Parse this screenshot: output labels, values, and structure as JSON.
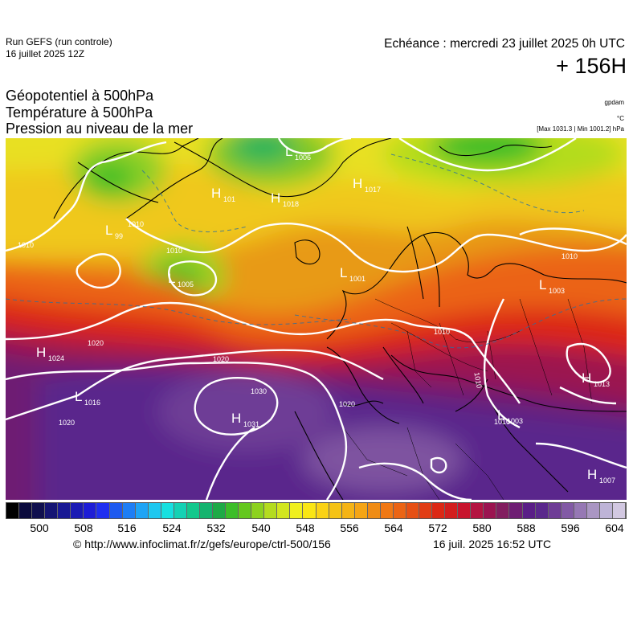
{
  "header": {
    "run_title": "Run GEFS (run controle)",
    "run_date": "16 juillet 2025 12Z",
    "echeance": "Echéance : mercredi 23 juillet 2025 0h UTC",
    "lead": "+ 156H"
  },
  "parameters": {
    "line1": "Géopotentiel à 500hPa",
    "line2": "Température à 500hPa",
    "line3": "Pression au niveau de la mer"
  },
  "units": {
    "geopotential": "gpdam",
    "temperature": "°C",
    "pressure_range": "[Max 1031.3 | Min 1001.2] hPa"
  },
  "pressure_centers": [
    {
      "type": "L",
      "value": "1006"
    },
    {
      "type": "H",
      "value": "1018"
    },
    {
      "type": "H",
      "value": "1017"
    },
    {
      "type": "H",
      "value": "101"
    },
    {
      "type": "L",
      "value": "99"
    },
    {
      "type": "L",
      "value": "1005"
    },
    {
      "type": "L",
      "value": "1001"
    },
    {
      "type": "L",
      "value": "1003"
    },
    {
      "type": "H",
      "value": "1024"
    },
    {
      "type": "L",
      "value": "1016"
    },
    {
      "type": "H",
      "value": "1031"
    },
    {
      "type": "H",
      "value": "1013"
    },
    {
      "type": "L",
      "value": "1003"
    },
    {
      "type": "H",
      "value": "1007"
    }
  ],
  "isobar_labels": [
    "1010",
    "1010",
    "1010",
    "1010",
    "1020",
    "1020",
    "1020",
    "1020",
    "1030",
    "1010",
    "1010",
    "1010"
  ],
  "colorbar": {
    "ticks": [
      "500",
      "508",
      "516",
      "524",
      "532",
      "540",
      "548",
      "556",
      "564",
      "572",
      "580",
      "588",
      "596",
      "604"
    ],
    "colors": [
      "#000000",
      "#0a0a3c",
      "#10104e",
      "#151573",
      "#191994",
      "#1b1bb4",
      "#1e1ed6",
      "#1f2ff0",
      "#1e5af0",
      "#1e7ef5",
      "#1ea4f5",
      "#1ec8f0",
      "#16e0e0",
      "#14d2b4",
      "#14c88c",
      "#14b46e",
      "#1eaa46",
      "#3cbe28",
      "#64c81e",
      "#8cd21e",
      "#b4dc1e",
      "#d2e61e",
      "#f0f01e",
      "#fae614",
      "#fad214",
      "#f5c314",
      "#f5b414",
      "#f5a514",
      "#f08c14",
      "#f07814",
      "#eb6414",
      "#e65014",
      "#e13c14",
      "#dc2814",
      "#d21e1e",
      "#c8142d",
      "#b41441",
      "#9b1450",
      "#821e5f",
      "#6e1e73",
      "#5a1e87",
      "#5a288c",
      "#6e3c96",
      "#825aa5",
      "#9678b4",
      "#aa96c3",
      "#beb4d7",
      "#d2c8e1"
    ]
  },
  "footer": {
    "copyright": "© http://www.infoclimat.fr/z/gefs/europe/ctrl-500/156",
    "generated": "16 juil. 2025 16:52 UTC"
  }
}
